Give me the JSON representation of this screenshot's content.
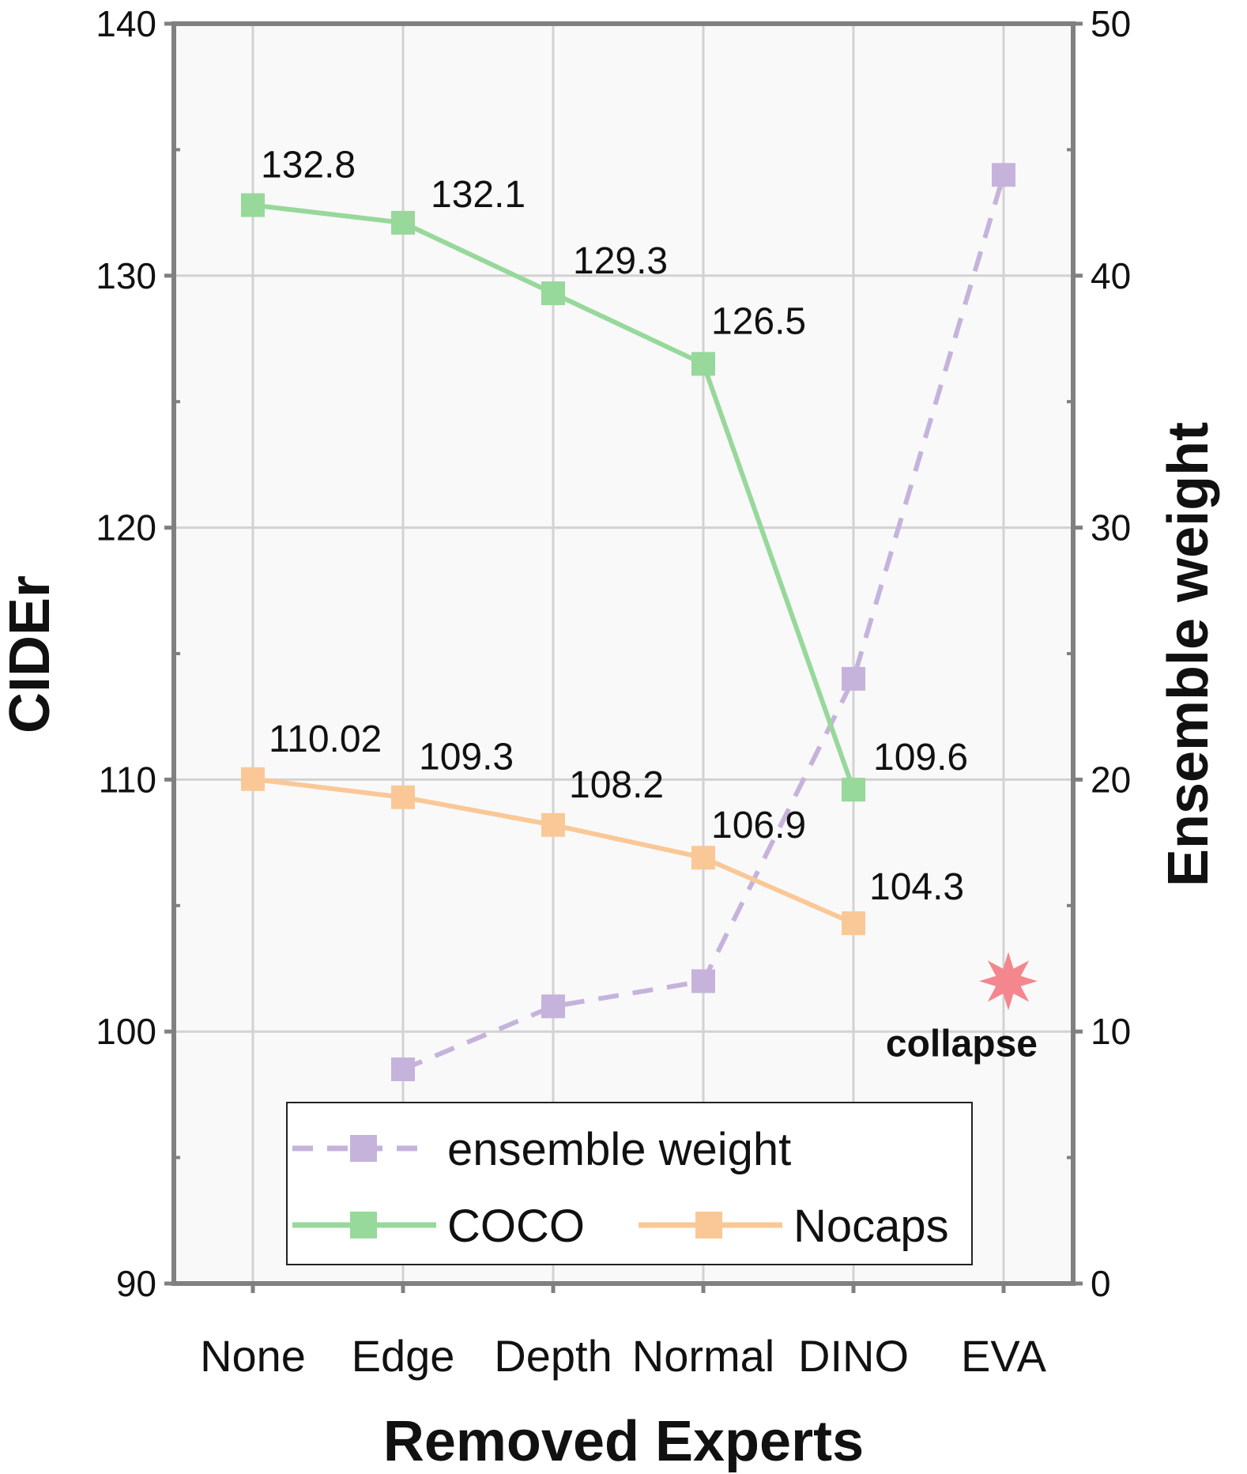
{
  "chart_data": {
    "type": "line",
    "title": "",
    "xlabel": "Removed Experts",
    "ylabel": "CIDEr",
    "y2label": "Ensemble weight",
    "categories": [
      "None",
      "Edge",
      "Depth",
      "Normal",
      "DINO",
      "EVA"
    ],
    "ylim": [
      90,
      140
    ],
    "y_ticks": [
      "90",
      "100",
      "110",
      "120",
      "130",
      "140"
    ],
    "y2lim": [
      0,
      50
    ],
    "y2_ticks": [
      "0",
      "10",
      "20",
      "30",
      "40",
      "50"
    ],
    "grid": true,
    "series": [
      {
        "name": "COCO",
        "axis": "left",
        "color": "#97d89b",
        "style": "solid",
        "values": [
          132.8,
          132.1,
          129.3,
          126.5,
          109.6,
          null
        ],
        "labels": [
          "132.8",
          "132.1",
          "129.3",
          "126.5",
          "109.6",
          null
        ]
      },
      {
        "name": "Nocaps",
        "axis": "left",
        "color": "#fac896",
        "style": "solid",
        "values": [
          110.02,
          109.3,
          108.2,
          106.9,
          104.3,
          null
        ],
        "labels": [
          "110.02",
          "109.3",
          "108.2",
          "106.9",
          "104.3",
          null
        ]
      },
      {
        "name": "ensemble weight",
        "axis": "right",
        "color": "#c5b3dc",
        "style": "dashed",
        "values": [
          null,
          8.5,
          11,
          12,
          24,
          44
        ]
      }
    ],
    "annotation": {
      "text": "collapse",
      "category": "EVA",
      "y2": 12,
      "marker_color": "#f4868d"
    },
    "legend": {
      "position": "bottom-center",
      "entries": [
        "ensemble weight",
        "COCO",
        "Nocaps"
      ]
    }
  }
}
